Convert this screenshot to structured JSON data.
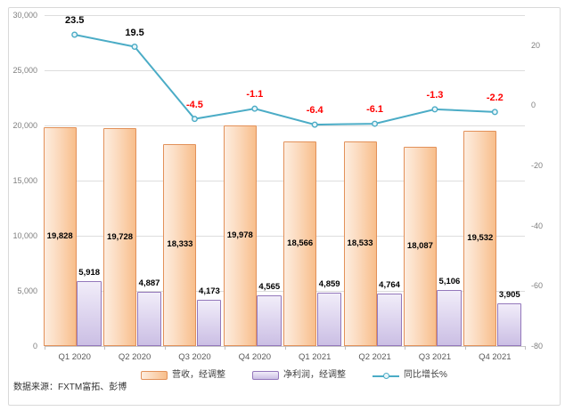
{
  "source_note": "数据来源：FXTM富拓、彭博",
  "colors": {
    "grid": "#DDDDDD",
    "axis_text": "#7F7F7F",
    "x_axis_text": "#595959",
    "bar_label": "#000000",
    "line": "#4BACC6",
    "line_label_positive": "#000000",
    "line_label_negative": "#FF0000",
    "revenue_border": "#E2915A",
    "profit_border": "#9478BB",
    "frame_border": "#D9D9D9"
  },
  "chart_data": {
    "type": "combo-bar-line",
    "categories": [
      "Q1 2020",
      "Q2 2020",
      "Q3 2020",
      "Q4 2020",
      "Q1 2021",
      "Q2 2021",
      "Q3 2021",
      "Q4 2021"
    ],
    "series": [
      {
        "name": "营收，经调整",
        "type": "bar",
        "axis": "left",
        "values": [
          19828,
          19728,
          18333,
          19978,
          18566,
          18533,
          18087,
          19532
        ],
        "labels": [
          "19,828",
          "19,728",
          "18,333",
          "19,978",
          "18,566",
          "18,533",
          "18,087",
          "19,532"
        ]
      },
      {
        "name": "净利润，经调整",
        "type": "bar",
        "axis": "left",
        "values": [
          5918,
          4887,
          4173,
          4565,
          4859,
          4764,
          5106,
          3905
        ],
        "labels": [
          "5,918",
          "4,887",
          "4,173",
          "4,565",
          "4,859",
          "4,764",
          "5,106",
          "3,905"
        ]
      },
      {
        "name": "同比增长%",
        "type": "line",
        "axis": "right",
        "values": [
          23.5,
          19.5,
          -4.5,
          -1.1,
          -6.4,
          -6.1,
          -1.3,
          -2.2
        ],
        "labels": [
          "23.5",
          "19.5",
          "-4.5",
          "-1.1",
          "-6.4",
          "-6.1",
          "-1.3",
          "-2.2"
        ]
      }
    ],
    "left_axis": {
      "min": 0,
      "max": 30000,
      "tick_values": [
        30000,
        25000,
        20000,
        15000,
        10000,
        5000,
        0
      ],
      "tick_labels": [
        "30,000",
        "25,000",
        "20,000",
        "15,000",
        "10,000",
        "5,000",
        "0"
      ]
    },
    "right_axis": {
      "min": -80,
      "max": 30,
      "tick_values": [
        20,
        0,
        -20,
        -40,
        -60,
        -80
      ],
      "tick_labels": [
        "20",
        "0",
        "-20",
        "-40",
        "-60",
        "-80"
      ]
    },
    "grid": true,
    "legend_position": "bottom"
  }
}
